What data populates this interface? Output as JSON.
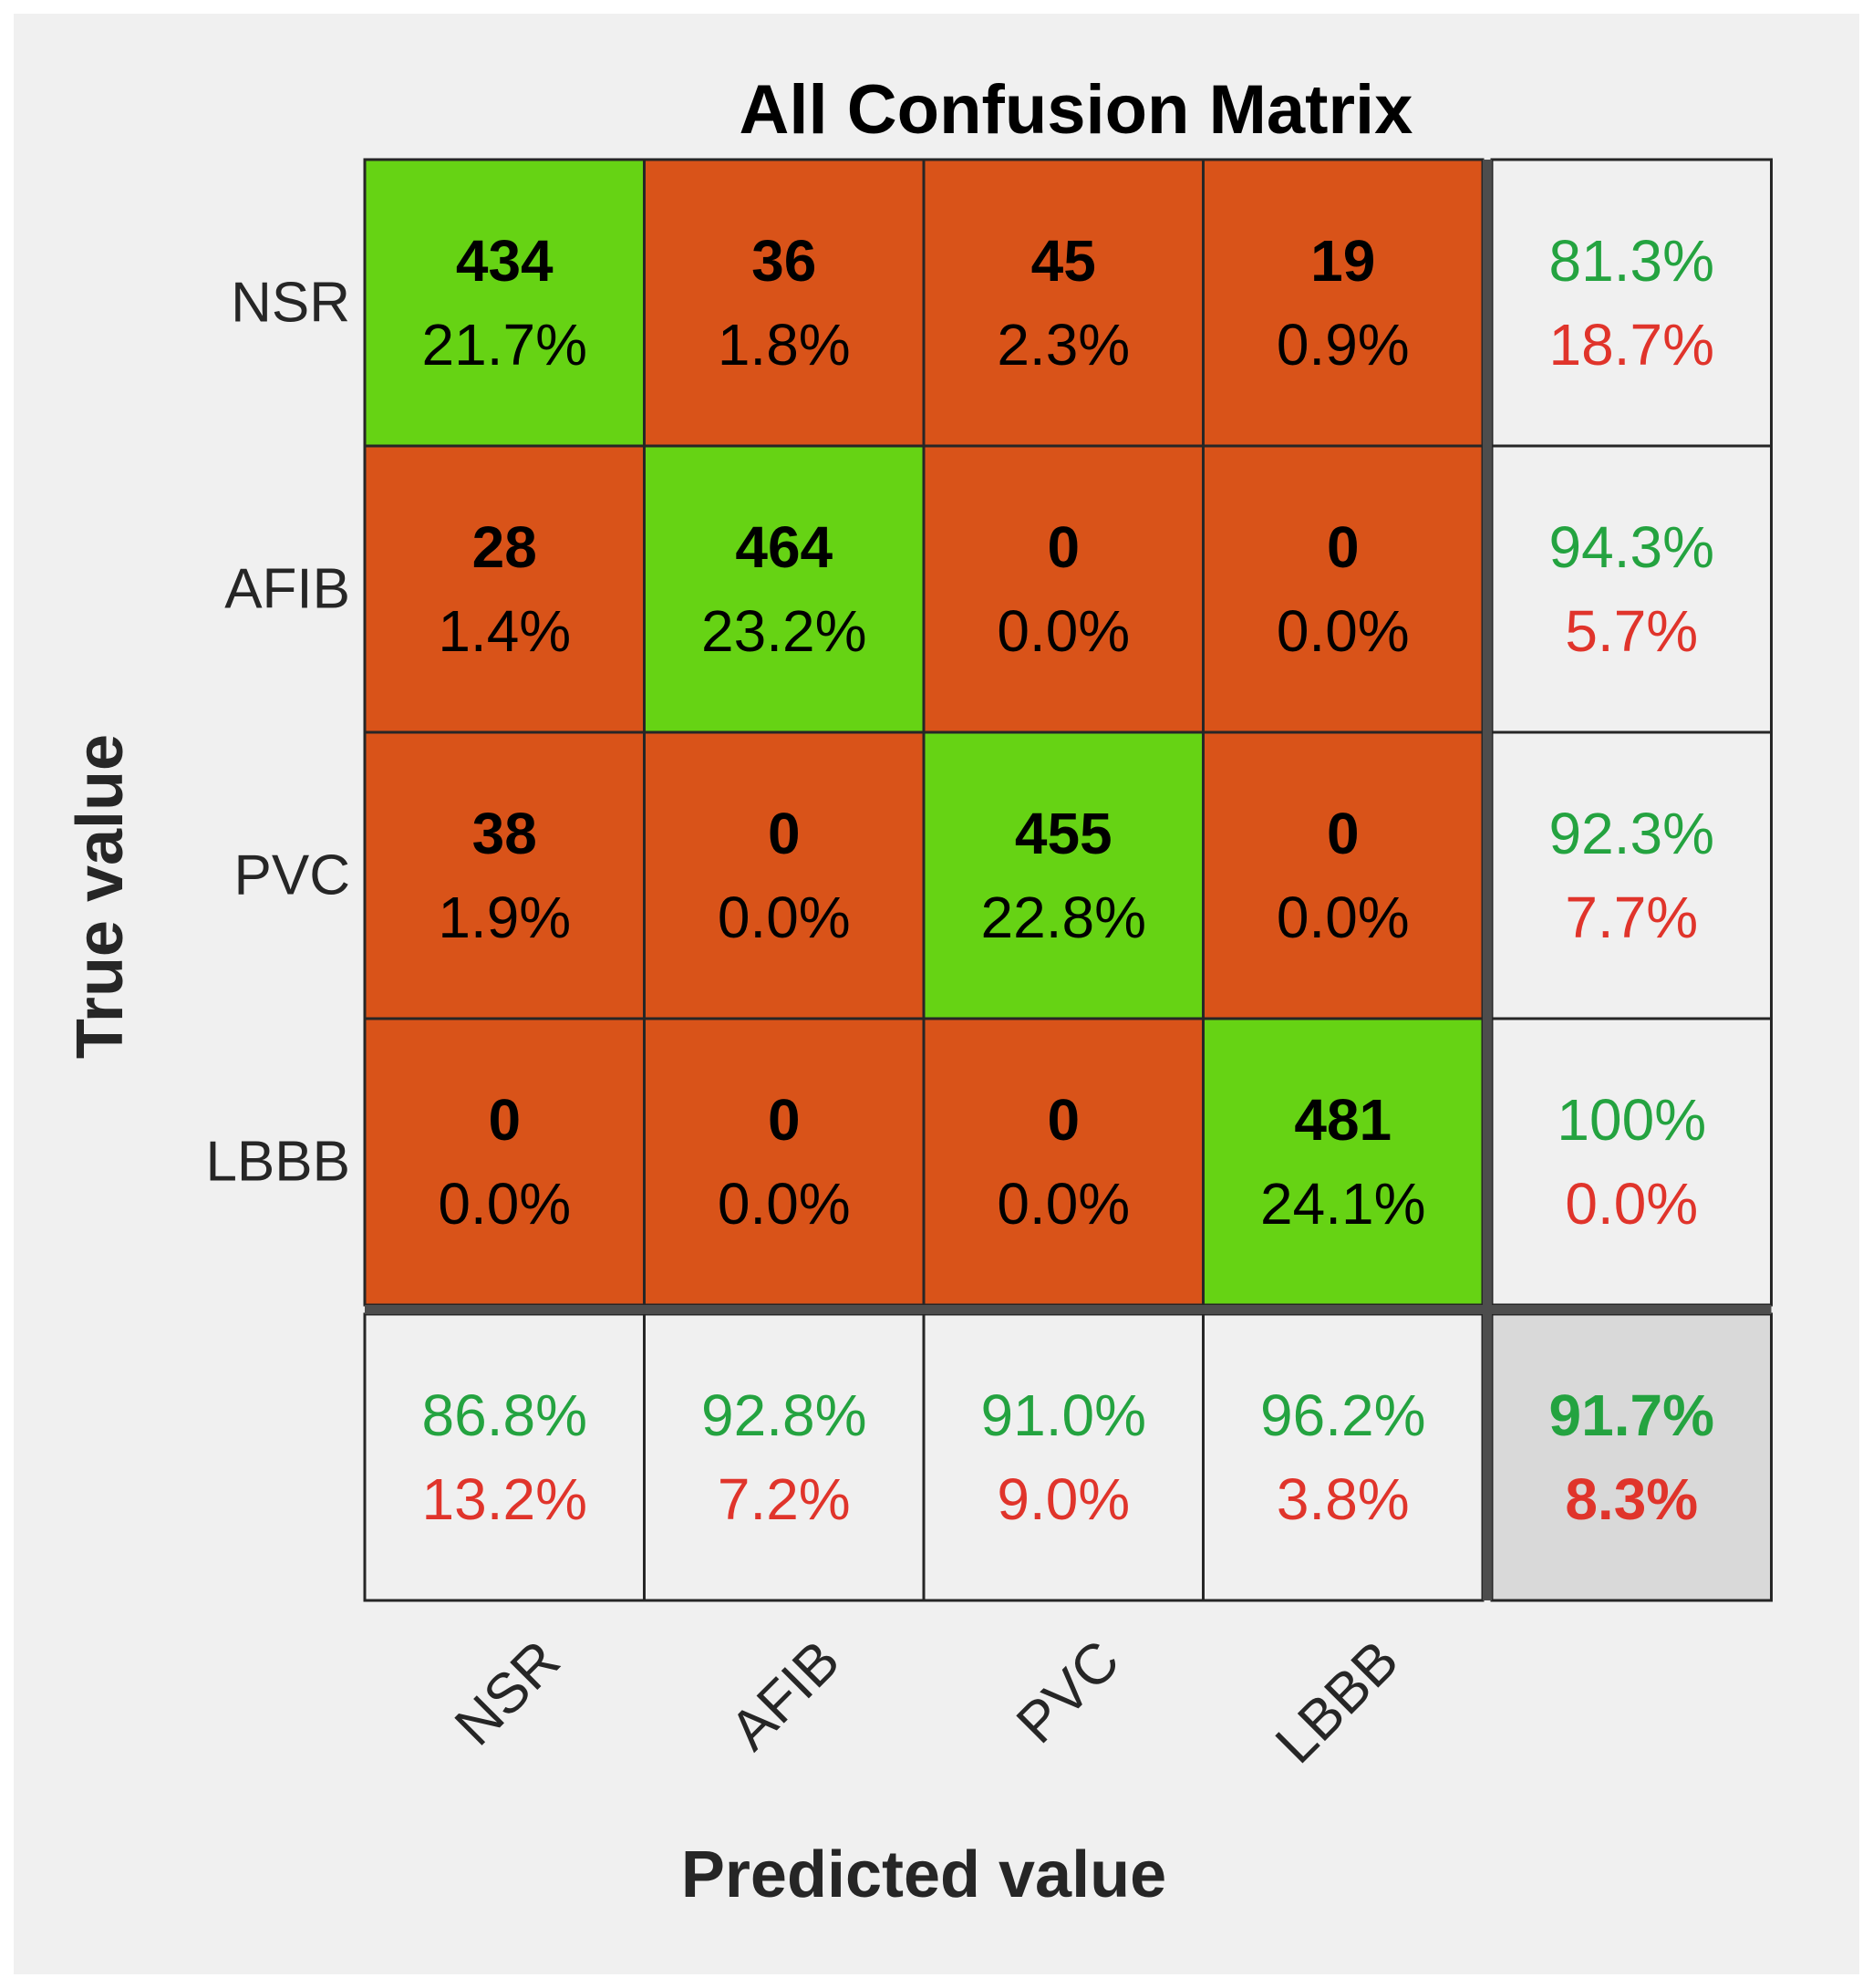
{
  "colors": {
    "correct": "#66d314",
    "incorrect": "#d95319",
    "summary_bg": "#f0f0f0",
    "overall_bg": "#d9d9d9",
    "good_text": "#24a340",
    "bad_text": "#e0342b",
    "grid": "#262626"
  },
  "chart_data": {
    "type": "heatmap",
    "title": "All Confusion Matrix",
    "xlabel": "Predicted value",
    "ylabel": "True value",
    "classes": [
      "NSR",
      "AFIB",
      "PVC",
      "LBBB"
    ],
    "counts": [
      [
        434,
        36,
        45,
        19
      ],
      [
        28,
        464,
        0,
        0
      ],
      [
        38,
        0,
        455,
        0
      ],
      [
        0,
        0,
        0,
        481
      ]
    ],
    "percents": [
      [
        "21.7%",
        "1.8%",
        "2.3%",
        "0.9%"
      ],
      [
        "1.4%",
        "23.2%",
        "0.0%",
        "0.0%"
      ],
      [
        "1.9%",
        "0.0%",
        "22.8%",
        "0.0%"
      ],
      [
        "0.0%",
        "0.0%",
        "0.0%",
        "24.1%"
      ]
    ],
    "row_summary": [
      {
        "correct": "81.3%",
        "incorrect": "18.7%"
      },
      {
        "correct": "94.3%",
        "incorrect": "5.7%"
      },
      {
        "correct": "92.3%",
        "incorrect": "7.7%"
      },
      {
        "correct": "100%",
        "incorrect": "0.0%"
      }
    ],
    "col_summary": [
      {
        "correct": "86.8%",
        "incorrect": "13.2%"
      },
      {
        "correct": "92.8%",
        "incorrect": "7.2%"
      },
      {
        "correct": "91.0%",
        "incorrect": "9.0%"
      },
      {
        "correct": "96.2%",
        "incorrect": "3.8%"
      }
    ],
    "overall": {
      "correct": "91.7%",
      "incorrect": "8.3%"
    }
  }
}
